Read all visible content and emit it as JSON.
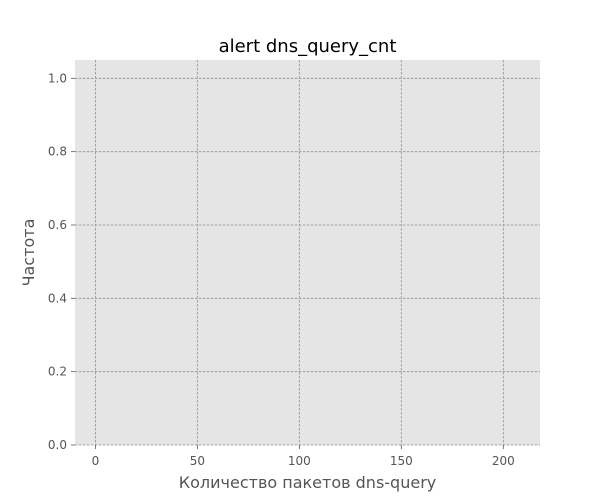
{
  "chart_data": {
    "type": "bar",
    "title": "alert dns_query_cnt",
    "xlabel": "Количество пакетов dns-query",
    "ylabel": "Частота",
    "xlim": [
      -10,
      218
    ],
    "ylim": [
      0,
      1.05
    ],
    "x_ticks": [
      0,
      50,
      100,
      150,
      200
    ],
    "y_ticks": [
      0.0,
      0.2,
      0.4,
      0.6,
      0.8,
      1.0
    ],
    "x_tick_labels": [
      "0",
      "50",
      "100",
      "150",
      "200"
    ],
    "y_tick_labels": [
      "0.0",
      "0.2",
      "0.4",
      "0.6",
      "0.8",
      "1.0"
    ],
    "series": [],
    "grid": true,
    "colors": {
      "panel": "#e5e5e5",
      "grid": "#8f8f8f",
      "text": "#555555"
    }
  }
}
